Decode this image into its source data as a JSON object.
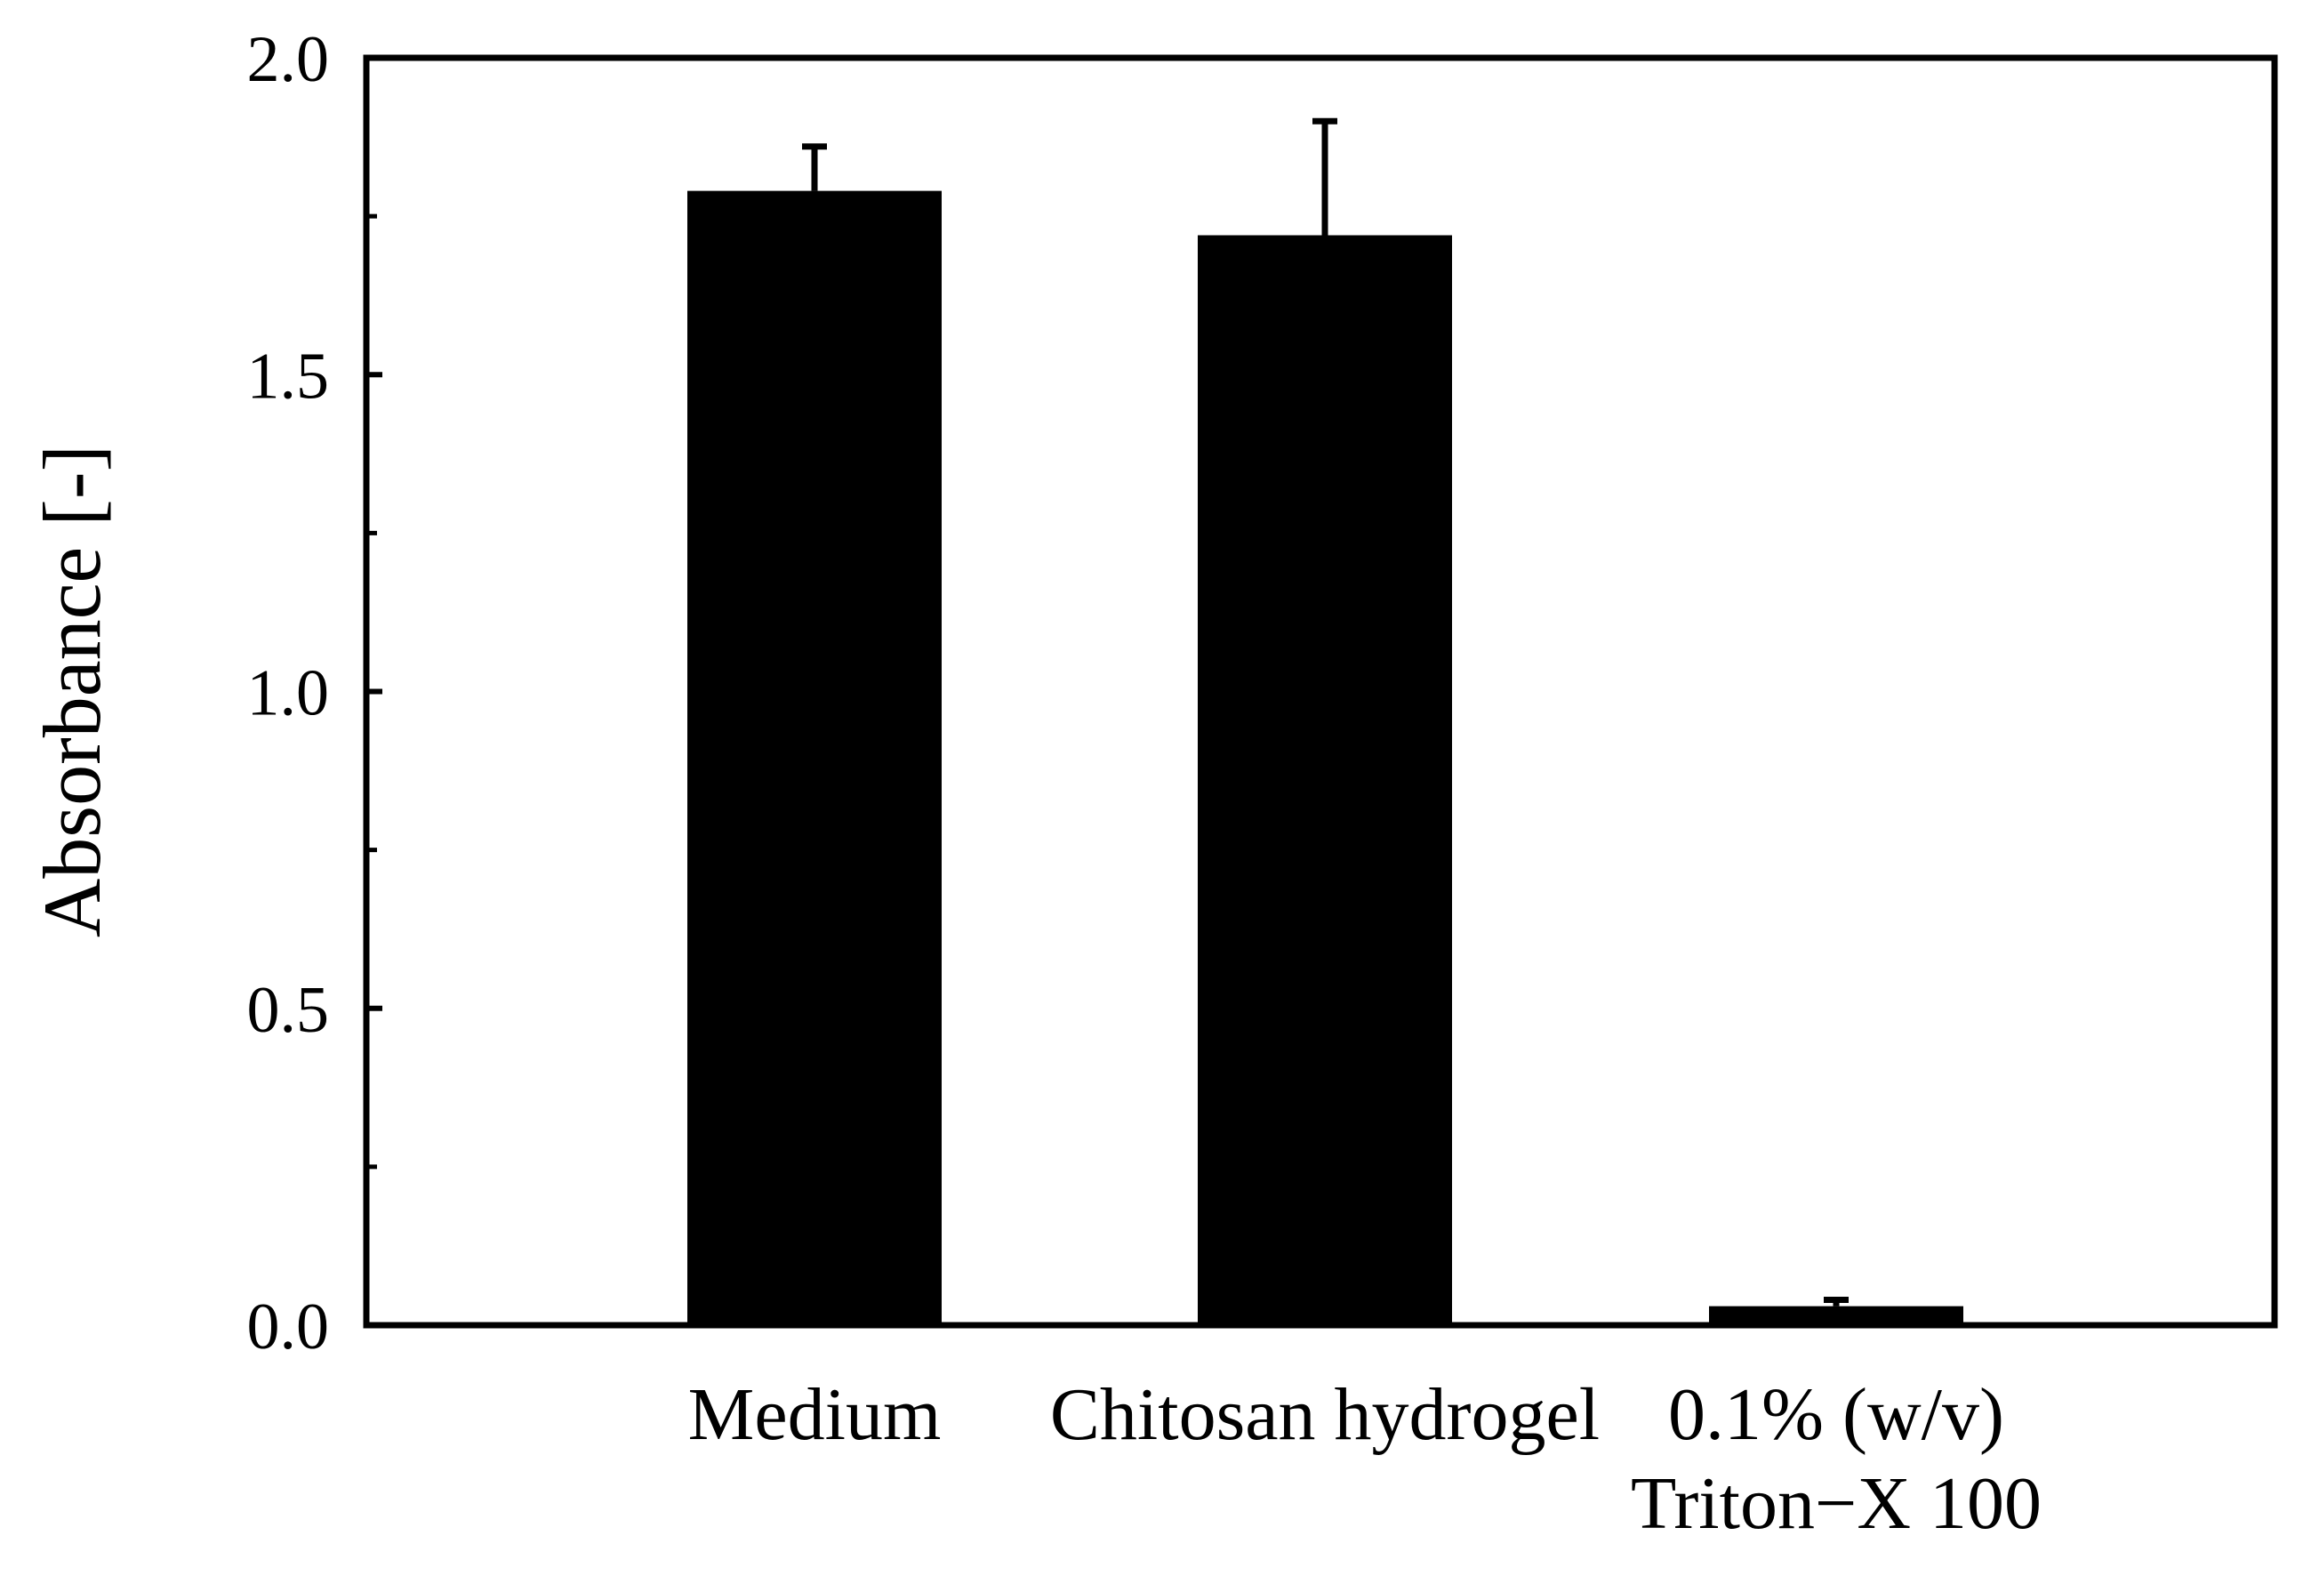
{
  "chart_data": {
    "type": "bar",
    "title": "",
    "xlabel": "",
    "ylabel": "Absorbance [-]",
    "ylim": [
      0,
      2.0
    ],
    "yticks": [
      0.0,
      0.5,
      1.0,
      1.5,
      2.0
    ],
    "ytick_labels": [
      "0.0",
      "0.5",
      "1.0",
      "1.5",
      "2.0"
    ],
    "yminor_ticks": [
      0.25,
      0.75,
      1.25,
      1.75
    ],
    "categories": [
      [
        "Medium"
      ],
      [
        "Chitosan hydrogel"
      ],
      [
        "0.1% (w/v)",
        "Triton−X 100"
      ]
    ],
    "values": [
      1.79,
      1.72,
      0.03
    ],
    "errors": [
      0.07,
      0.18,
      0.01
    ],
    "grid": false,
    "legend": "none",
    "bar_color": "#000000"
  }
}
